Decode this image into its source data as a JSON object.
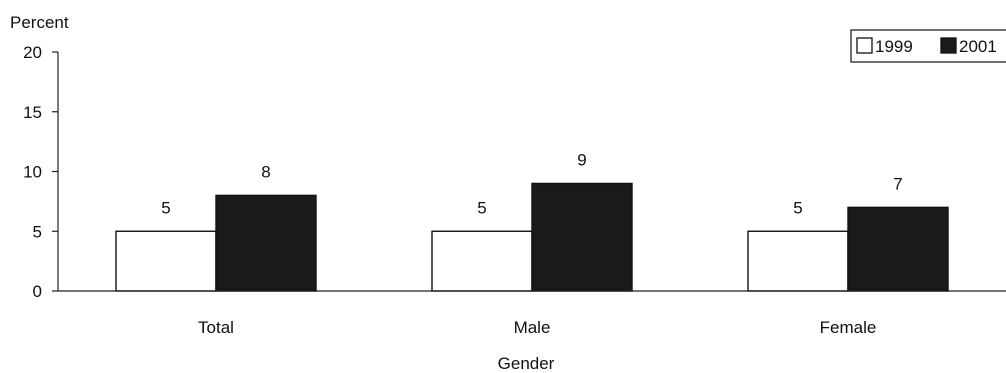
{
  "chart_data": {
    "type": "bar",
    "title": "",
    "ylabel": "Percent",
    "xlabel": "Gender",
    "ylim": [
      0,
      20
    ],
    "yticks": [
      0,
      5,
      10,
      15,
      20
    ],
    "categories": [
      "Total",
      "Male",
      "Female"
    ],
    "series": [
      {
        "name": "1999",
        "values": [
          5,
          5,
          5
        ],
        "color": "#ffffff"
      },
      {
        "name": "2001",
        "values": [
          8,
          9,
          7
        ],
        "color": "#1a1a1a"
      }
    ],
    "data_labels": [
      [
        "5",
        "5",
        "5"
      ],
      [
        "8",
        "9",
        "7"
      ]
    ],
    "grid": false,
    "legend_position": "top-right"
  }
}
